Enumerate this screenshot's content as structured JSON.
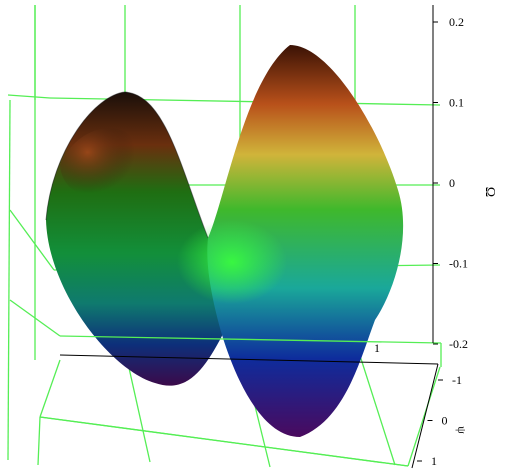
{
  "chart_data": {
    "type": "surface3d",
    "colormap": "hsv",
    "grid": true,
    "grid_color": "#55ee55",
    "surface_colors": {
      "top": "#b85a1a",
      "mid": "#1f8a1f",
      "low": "#1fb9b1",
      "bottom": "#5a0a80",
      "edge_dark": "#111111",
      "highlight": "#e6e04a"
    },
    "z_axis": {
      "label": "",
      "unit_glyph": "Ω",
      "range": [
        -0.2,
        0.2
      ],
      "ticks": [
        "0.2",
        "0.1",
        "0",
        "-0.1",
        "-0.2"
      ]
    },
    "y_axis": {
      "label": "",
      "unit_glyph": "ψ",
      "range": [
        -1,
        1
      ],
      "ticks": [
        "-1",
        "0",
        "1"
      ]
    },
    "x_axis": {
      "label": "",
      "range": [
        -1,
        1
      ],
      "ticks": [
        "1"
      ]
    },
    "surface": {
      "description_kind": "saddle",
      "z_max": 0.2,
      "z_min": -0.2
    }
  }
}
